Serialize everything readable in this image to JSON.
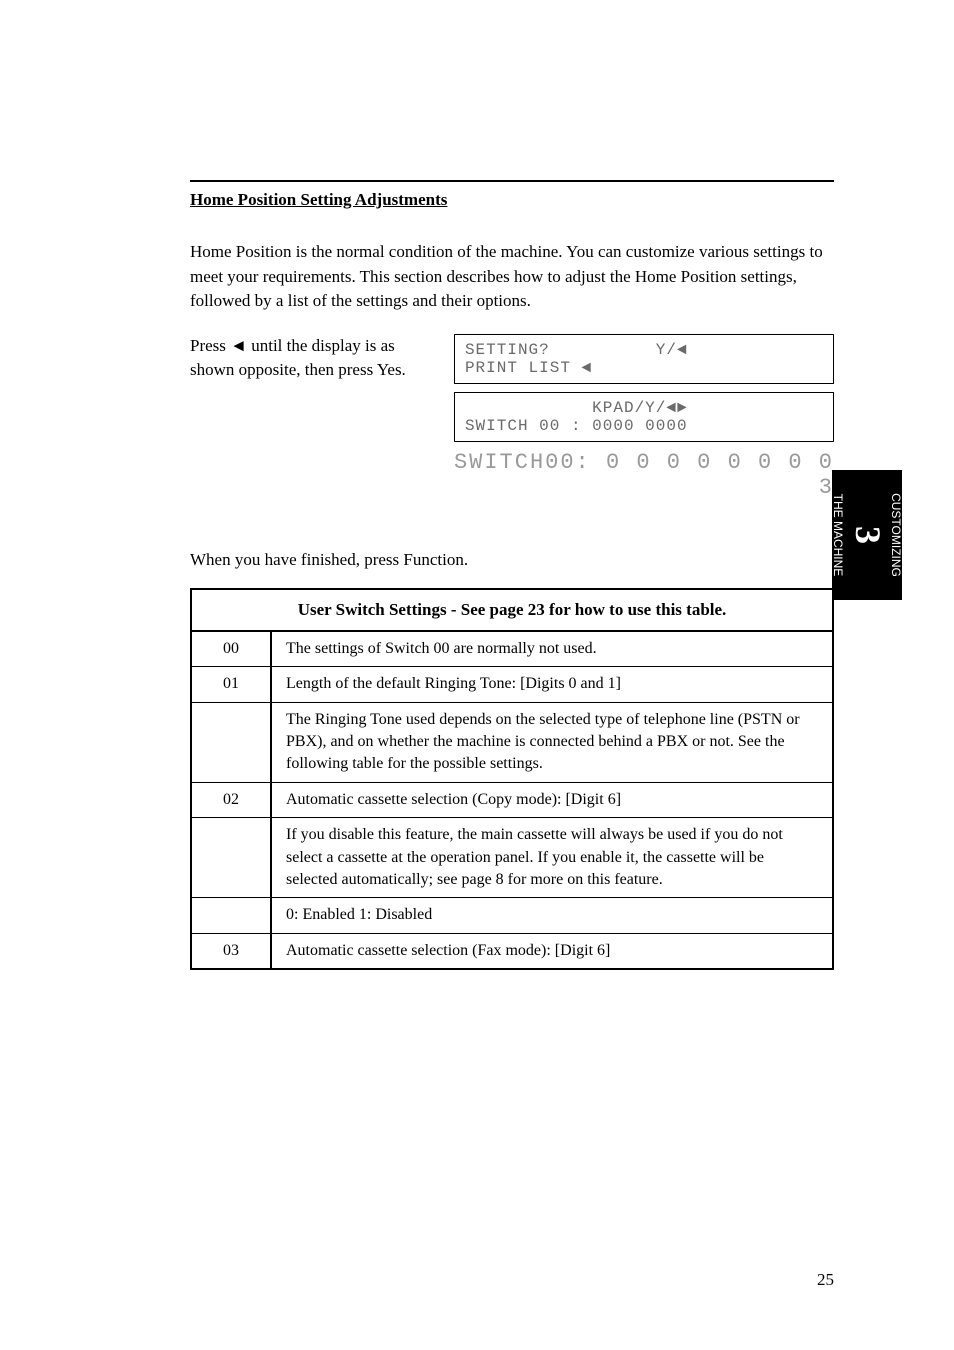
{
  "section_heading": "Home Position Setting Adjustments",
  "intro_paragraph": "Home Position is the normal condition of the machine. You can customize various settings to meet your requirements. This section describes how to adjust the Home Position settings, followed by a list of the settings and their options.",
  "step1_text_pre": "Press ",
  "step1_triangle": "◄",
  "step1_text_post": " until the display is as shown opposite, then press Yes.",
  "lcd1_line1_left": "SETTING?",
  "lcd1_line1_right": "Y/◄",
  "lcd1_line2": "PRINT LIST ◄",
  "lcd2_line1_right": "KPAD/Y/◄►",
  "lcd2_line2": "SWITCH 00 : 0000 0000",
  "mono_line1": "SWITCH00: 0 0 0 0 0 0 0 0",
  "mono_line2": "                        3",
  "end_para": "When you have finished, press Function.",
  "table_header": "User Switch Settings - See page 23 for how to use this table.",
  "rows": [
    {
      "sw": "00",
      "text": "The settings of Switch 00 are normally not used."
    },
    {
      "sw": "01",
      "text": "Length of the default Ringing Tone: [Digits 0 and 1]"
    },
    {
      "sw": "",
      "text": "The Ringing Tone used depends on the selected type of telephone line (PSTN or PBX), and on whether the machine is connected behind a PBX or not. See the following table for the possible settings."
    },
    {
      "sw": "02",
      "text": "Automatic cassette selection (Copy mode): [Digit 6]"
    },
    {
      "sw": "",
      "text": "If you disable this feature, the main cassette will always be used if you do not select a cassette at the operation panel. If you enable it, the cassette will be selected automatically; see page 8 for more on this feature."
    },
    {
      "sw": "",
      "text": "0: Enabled 1: Disabled"
    },
    {
      "sw": "03",
      "text": "Automatic cassette selection (Fax mode): [Digit 6]"
    }
  ],
  "side_tab": {
    "label_top": "THE MACHINE",
    "number": "3",
    "label_bottom": "CUSTOMIZING"
  },
  "page_number": "25"
}
